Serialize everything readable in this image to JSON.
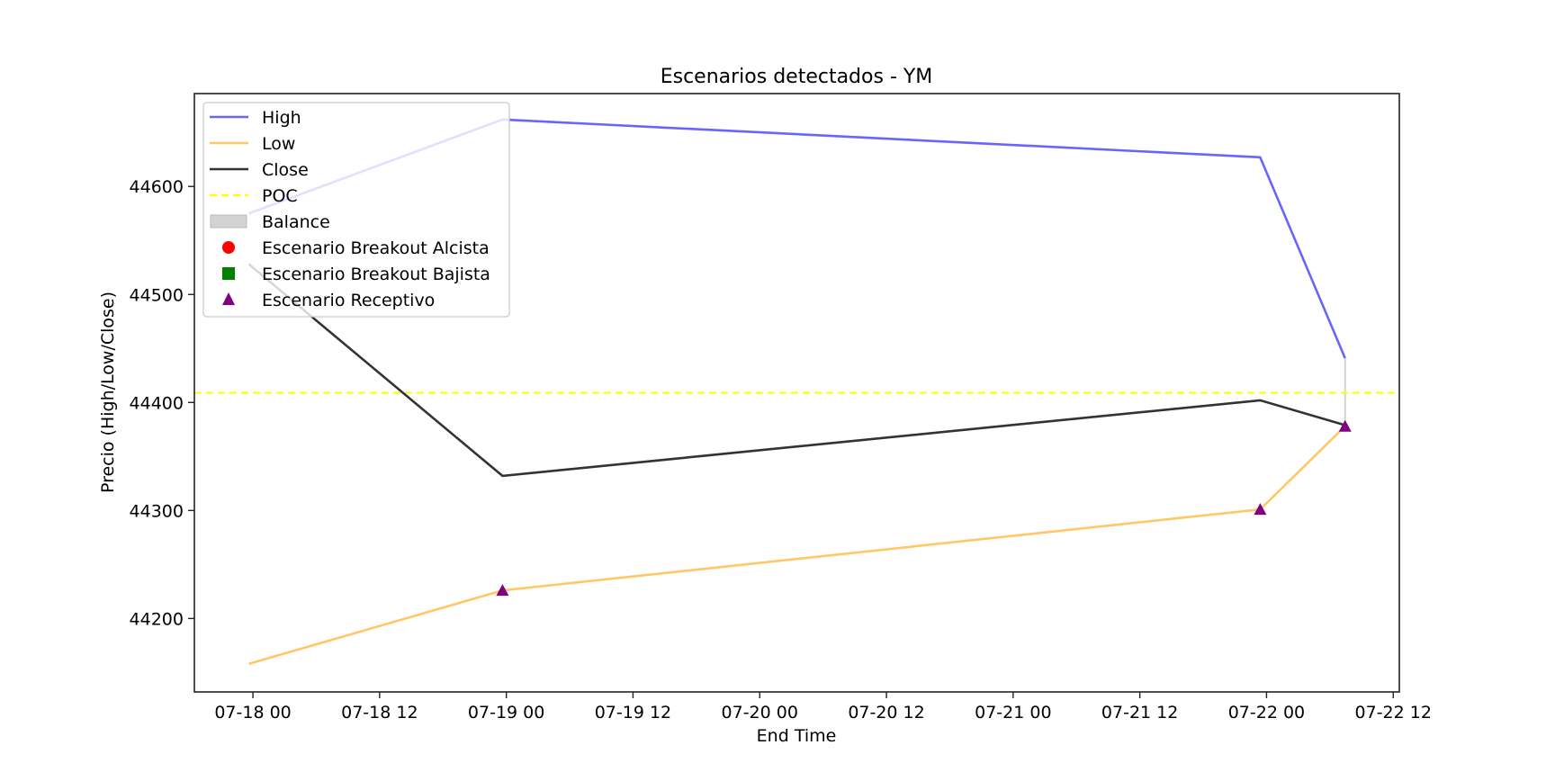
{
  "chart_data": {
    "type": "line",
    "title": "Escenarios detectados - YM",
    "xlabel": "End Time",
    "ylabel": "Precio (High/Low/Close)",
    "x_unit": "days since 07-18 00:00",
    "x": [
      -0.016,
      0.985,
      3.975,
      4.31
    ],
    "xlim": [
      -0.231,
      4.524
    ],
    "ylim": [
      44132,
      44686
    ],
    "xticks": [
      {
        "value": 0,
        "label": "07-18 00"
      },
      {
        "value": 0.5,
        "label": "07-18 12"
      },
      {
        "value": 1,
        "label": "07-19 00"
      },
      {
        "value": 1.5,
        "label": "07-19 12"
      },
      {
        "value": 2,
        "label": "07-20 00"
      },
      {
        "value": 2.5,
        "label": "07-20 12"
      },
      {
        "value": 3,
        "label": "07-21 00"
      },
      {
        "value": 3.5,
        "label": "07-21 12"
      },
      {
        "value": 4,
        "label": "07-22 00"
      },
      {
        "value": 4.5,
        "label": "07-22 12"
      }
    ],
    "yticks": [
      {
        "value": 44200,
        "label": "44200"
      },
      {
        "value": 44300,
        "label": "44300"
      },
      {
        "value": 44400,
        "label": "44400"
      },
      {
        "value": 44500,
        "label": "44500"
      },
      {
        "value": 44600,
        "label": "44600"
      }
    ],
    "grid": false,
    "legend_position": "top-left",
    "series": [
      {
        "name": "High",
        "color": "#6666ff",
        "values": [
          44575,
          44662,
          44627,
          44441
        ]
      },
      {
        "name": "Low",
        "color": "#ffc766",
        "values": [
          44158,
          44226,
          44301,
          44378
        ]
      },
      {
        "name": "Close",
        "color": "#333333",
        "values": [
          44528,
          44332,
          44402,
          44379
        ]
      }
    ],
    "poc": {
      "name": "POC",
      "value": 44409,
      "color": "#ffff00"
    },
    "balance": {
      "name": "Balance",
      "color": "#d3d3d3",
      "x": 4.31,
      "low": 44379,
      "high": 44441
    },
    "scenarios": [
      {
        "name": "Escenario Breakout Alcista",
        "marker": "circle",
        "color": "#ff0000",
        "points": []
      },
      {
        "name": "Escenario Breakout Bajista",
        "marker": "square",
        "color": "#008000",
        "points": []
      },
      {
        "name": "Escenario Receptivo",
        "marker": "triangle",
        "color": "#800080",
        "points": [
          [
            0.985,
            44226
          ],
          [
            3.975,
            44301
          ],
          [
            4.31,
            44378
          ]
        ]
      }
    ]
  }
}
